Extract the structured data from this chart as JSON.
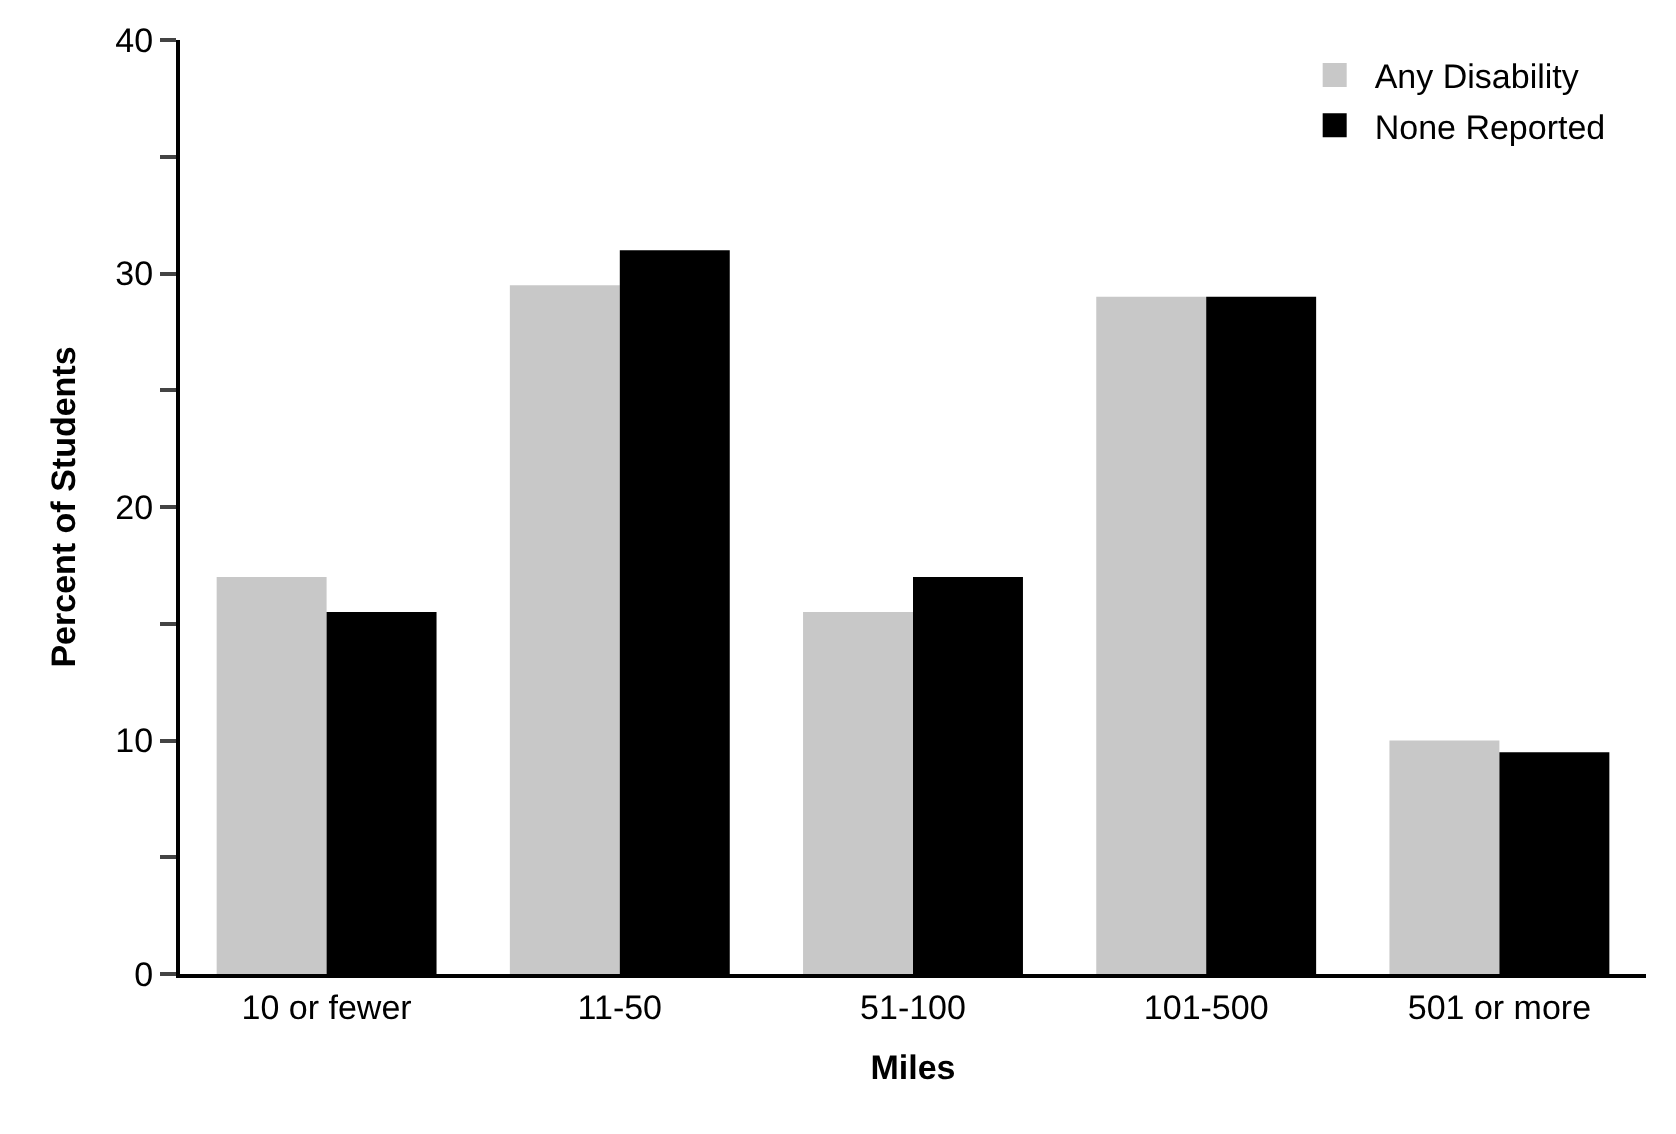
{
  "chart_data": {
    "type": "bar",
    "xlabel": "Miles",
    "ylabel": "Percent of Students",
    "categories": [
      "10 or fewer",
      "11-50",
      "51-100",
      "101-500",
      "501 or more"
    ],
    "series": [
      {
        "name": "Any Disability",
        "color": "#c8c8c8",
        "values": [
          17,
          29.5,
          15.5,
          29,
          10
        ]
      },
      {
        "name": "None Reported",
        "color": "#000000",
        "values": [
          15.5,
          31,
          17,
          29,
          9.5
        ]
      }
    ],
    "ylim": [
      0,
      40
    ],
    "yticks": [
      0,
      {
        "value": 5,
        "label": null
      },
      10,
      {
        "value": 15,
        "label": null
      },
      20,
      {
        "value": 25,
        "label": null
      },
      30,
      {
        "value": 35,
        "label": null
      },
      40
    ],
    "legend": "top right"
  }
}
